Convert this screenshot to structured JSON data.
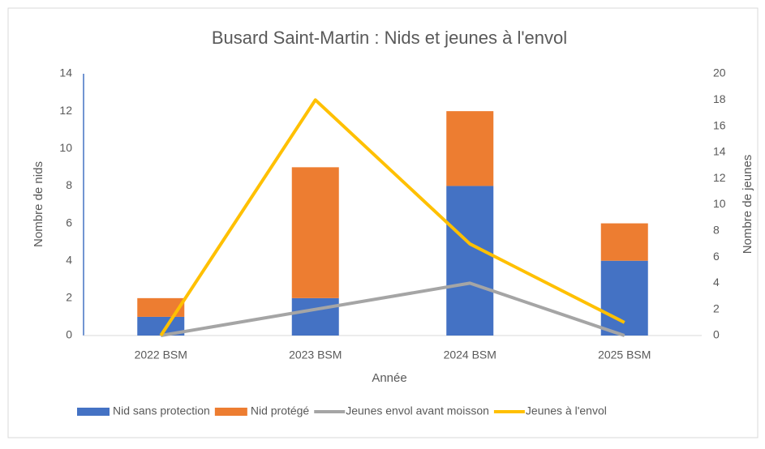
{
  "chart_data": {
    "type": "bar",
    "stacked": true,
    "title": "Busard Saint-Martin : Nids et jeunes à l'envol",
    "xlabel": "Année",
    "ylabel": "Nombre de nids",
    "y2label": "Nombre de jeunes",
    "categories": [
      "2022 BSM",
      "2023 BSM",
      "2024 BSM",
      "2025 BSM"
    ],
    "series": [
      {
        "name": "Nid sans protection",
        "type": "bar",
        "color": "#4472c4",
        "values": [
          1,
          2,
          8,
          4
        ]
      },
      {
        "name": "Nid protégé",
        "type": "bar",
        "color": "#ed7d31",
        "values": [
          1,
          7,
          4,
          2
        ]
      },
      {
        "name": "Jeunes envol avant moisson",
        "type": "line",
        "axis": "y2",
        "color": "#a5a5a5",
        "values": [
          0,
          2,
          4,
          0
        ]
      },
      {
        "name": "Jeunes à l'envol",
        "type": "line",
        "axis": "y2",
        "color": "#ffc000",
        "values": [
          0,
          18,
          7,
          1
        ]
      }
    ],
    "ylim": [
      0,
      14
    ],
    "yticks": [
      0,
      2,
      4,
      6,
      8,
      10,
      12,
      14
    ],
    "y2lim": [
      0,
      20
    ],
    "y2ticks": [
      0,
      2,
      4,
      6,
      8,
      10,
      12,
      14,
      16,
      18,
      20
    ],
    "legend": "bottom",
    "grid": false
  }
}
